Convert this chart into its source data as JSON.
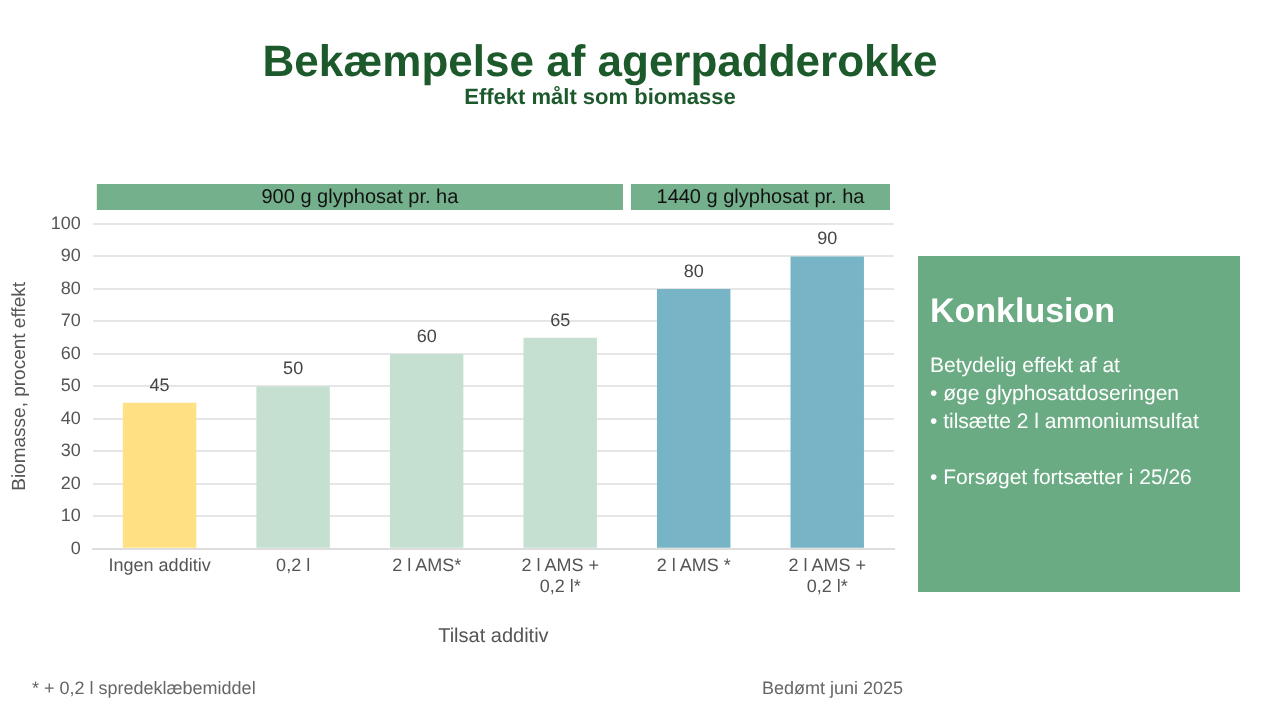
{
  "chart_data": [
    {
      "type": "bar",
      "title": "Bekæmpelse af agerpadderokke",
      "subtitle": "Effekt målt som biomasse",
      "xlabel": "Tilsat additiv",
      "ylabel": "Biomasse, procent effekt",
      "categories": [
        "Ingen additiv",
        "0,2 l",
        "2 l AMS*",
        "2 l AMS + 0,2 l*",
        "2 l AMS *",
        "2 l AMS + 0,2 l*"
      ],
      "values": [
        45,
        50,
        60,
        65,
        80,
        90
      ],
      "colors": [
        "#ffe083",
        "#c5e0d1",
        "#c5e0d1",
        "#c5e0d1",
        "#77b5c6",
        "#77b5c6"
      ],
      "ylim": [
        0,
        100
      ],
      "yticks": [
        0,
        10,
        20,
        30,
        40,
        50,
        60,
        70,
        80,
        90,
        100
      ],
      "grid": "y",
      "data_labels": true,
      "annotations": [
        "900 g glyphosat pr. ha",
        "1440 g glyphosat pr. ha",
        "* + 0,2 l spredeklæbemiddel",
        "Bedømt juni 2025"
      ]
    },
    {
      "type": "other",
      "title": "Konklusion",
      "annotations": [
        "Betydelig effekt af at",
        "• øge glyphosatdoseringen",
        "• tilsætte 2 l ammoniumsulfat",
        "• Forsøget fortsætter i 25/26"
      ]
    }
  ]
}
